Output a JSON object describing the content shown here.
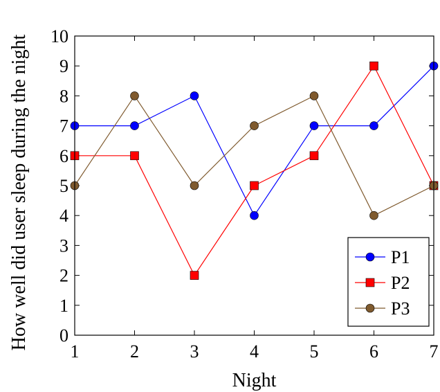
{
  "chart_data": {
    "type": "line",
    "title": "",
    "xlabel": "Night",
    "ylabel": "How well did user sleep during the night",
    "x": [
      1,
      2,
      3,
      4,
      5,
      6,
      7
    ],
    "xlim": [
      1,
      7
    ],
    "ylim": [
      0,
      10
    ],
    "xticks": [
      1,
      2,
      3,
      4,
      5,
      6,
      7
    ],
    "yticks": [
      0,
      1,
      2,
      3,
      4,
      5,
      6,
      7,
      8,
      9,
      10
    ],
    "grid": false,
    "legend_position": "bottom-right",
    "series": [
      {
        "name": "P1",
        "color": "#0000ff",
        "marker": "circle",
        "values": [
          7,
          7,
          8,
          4,
          7,
          7,
          9
        ]
      },
      {
        "name": "P2",
        "color": "#ff0000",
        "marker": "square",
        "values": [
          6,
          6,
          2,
          5,
          6,
          9,
          5
        ]
      },
      {
        "name": "P3",
        "color": "#7f5a2e",
        "marker": "circle",
        "values": [
          5,
          8,
          5,
          7,
          8,
          4,
          5
        ]
      }
    ]
  }
}
